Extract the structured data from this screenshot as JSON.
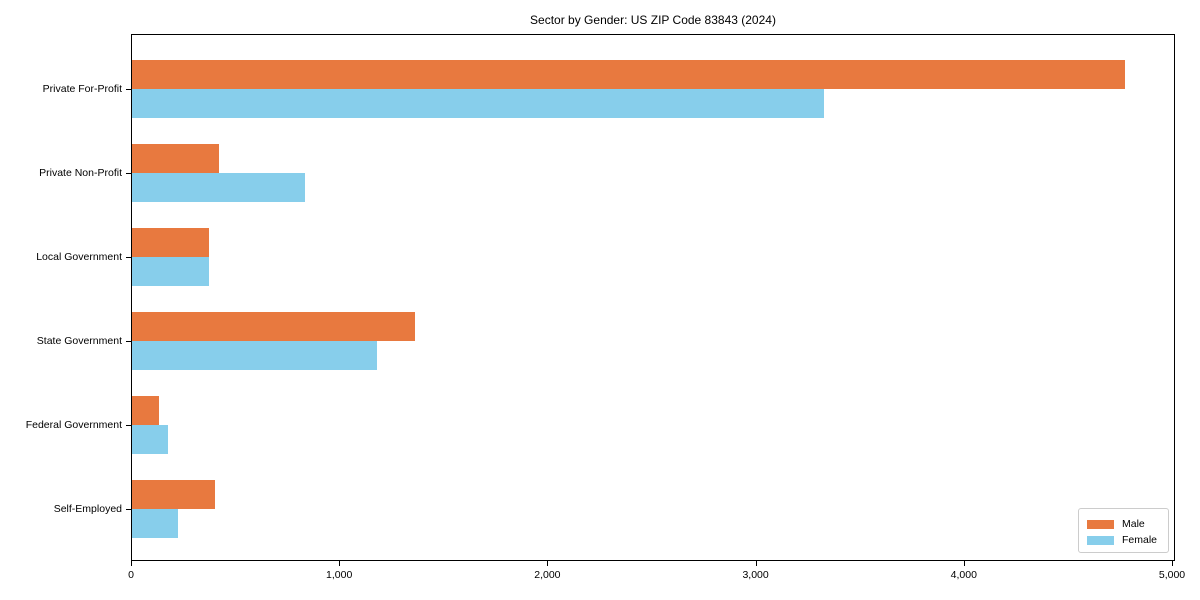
{
  "chart_data": {
    "type": "bar",
    "orientation": "horizontal",
    "title": "Sector by Gender: US ZIP Code 83843 (2024)",
    "categories": [
      "Private For-Profit",
      "Private Non-Profit",
      "Local Government",
      "State Government",
      "Federal Government",
      "Self-Employed"
    ],
    "series": [
      {
        "name": "Male",
        "color": "#e8793f",
        "values": [
          4770,
          420,
          370,
          1360,
          130,
          400
        ]
      },
      {
        "name": "Female",
        "color": "#87ceeb",
        "values": [
          3325,
          830,
          368,
          1175,
          175,
          220
        ]
      }
    ],
    "xlabel": "",
    "ylabel": "",
    "xlim": [
      0,
      5000
    ],
    "x_ticks": [
      0,
      1000,
      2000,
      3000,
      4000,
      5000
    ],
    "x_tick_labels": [
      "0",
      "1,000",
      "2,000",
      "3,000",
      "4,000",
      "5,000"
    ],
    "grid": false,
    "legend_position": "lower right",
    "legend_entries": [
      "Male",
      "Female"
    ]
  },
  "colors": {
    "male": "#e8793f",
    "female": "#87ceeb",
    "spine": "#000000",
    "legend_border": "#cccccc",
    "background": "#ffffff",
    "text": "#000000"
  }
}
